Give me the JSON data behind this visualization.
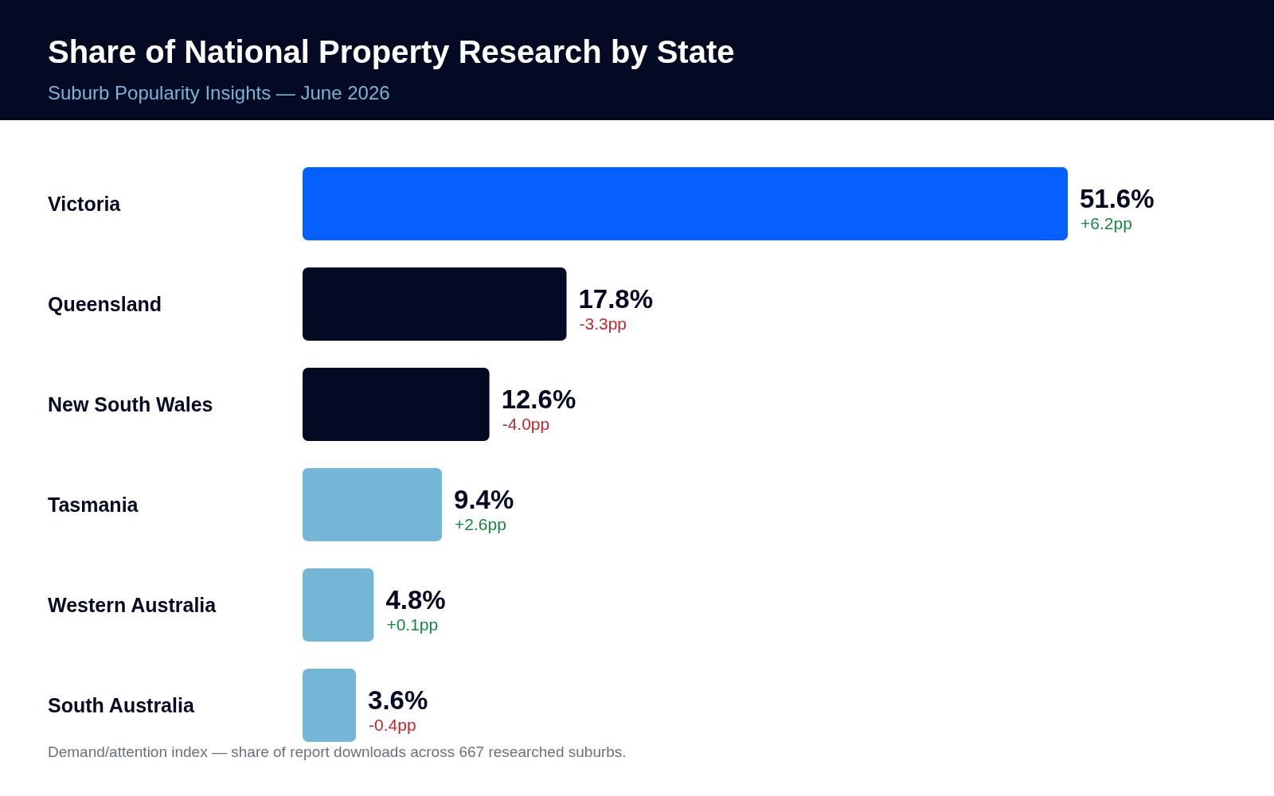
{
  "chart_data": {
    "type": "bar",
    "orientation": "horizontal",
    "title": "Share of National Property Research by State",
    "subtitle": "Suburb Popularity Insights — June 2026",
    "categories": [
      "Victoria",
      "Queensland",
      "New South Wales",
      "Tasmania",
      "Western Australia",
      "South Australia"
    ],
    "values": [
      51.6,
      17.8,
      12.6,
      9.4,
      4.8,
      3.6
    ],
    "colors": [
      "#0560fd",
      "#040a24",
      "#040a24",
      "#74b6d6",
      "#74b6d6",
      "#74b6d6"
    ],
    "value_labels": [
      "51.6%",
      "17.8%",
      "12.6%",
      "9.4%",
      "4.8%",
      "3.6%"
    ],
    "tick_labels": "y",
    "annotations": [
      {
        "text": "+6.2pp",
        "x": 51.6,
        "y": "Victoria"
      },
      {
        "text": "-3.3pp",
        "x": 17.8,
        "y": "Queensland"
      },
      {
        "text": "-4.0pp",
        "x": 12.6,
        "y": "New South Wales"
      },
      {
        "text": "+2.6pp",
        "x": 9.4,
        "y": "Tasmania"
      },
      {
        "text": "+0.1pp",
        "x": 4.8,
        "y": "Western Australia"
      },
      {
        "text": "-0.4pp",
        "x": 3.6,
        "y": "South Australia"
      },
      "Demand/attention index — share of report downloads across 667 researched suburbs."
    ]
  }
}
